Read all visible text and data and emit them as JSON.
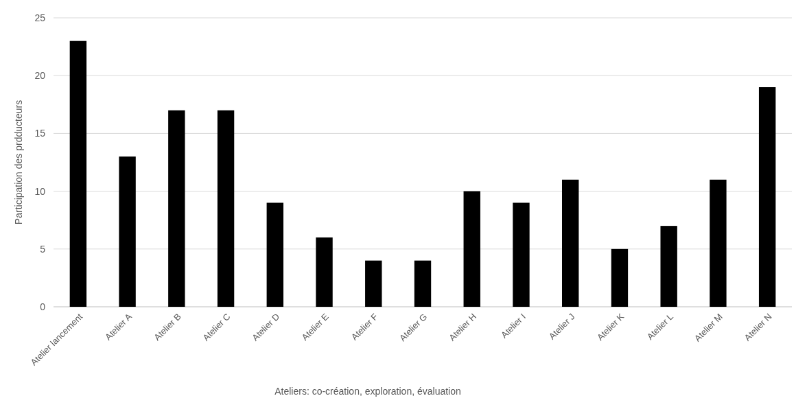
{
  "chart_data": {
    "type": "bar",
    "xlabel": "Ateliers: co-création, exploration, évaluation",
    "ylabel": "Participation des prdducteurs",
    "categories": [
      "Atelier lancement",
      "Atelier A",
      "Atelier B",
      "Atelier C",
      "Atelier D",
      "Atelier E",
      "Atelier F",
      "Atelier G",
      "Atelier H",
      "Atelier I",
      "Atelier J",
      "Atelier K",
      "Atelier L",
      "Atelier M",
      "Atelier N"
    ],
    "values": [
      23,
      13,
      17,
      17,
      9,
      6,
      4,
      4,
      10,
      9,
      11,
      5,
      7,
      11,
      19
    ],
    "color": "#000000",
    "ylim": [
      0,
      25
    ],
    "yticks": [
      0,
      5,
      10,
      15,
      20,
      25
    ],
    "grid": "y"
  }
}
